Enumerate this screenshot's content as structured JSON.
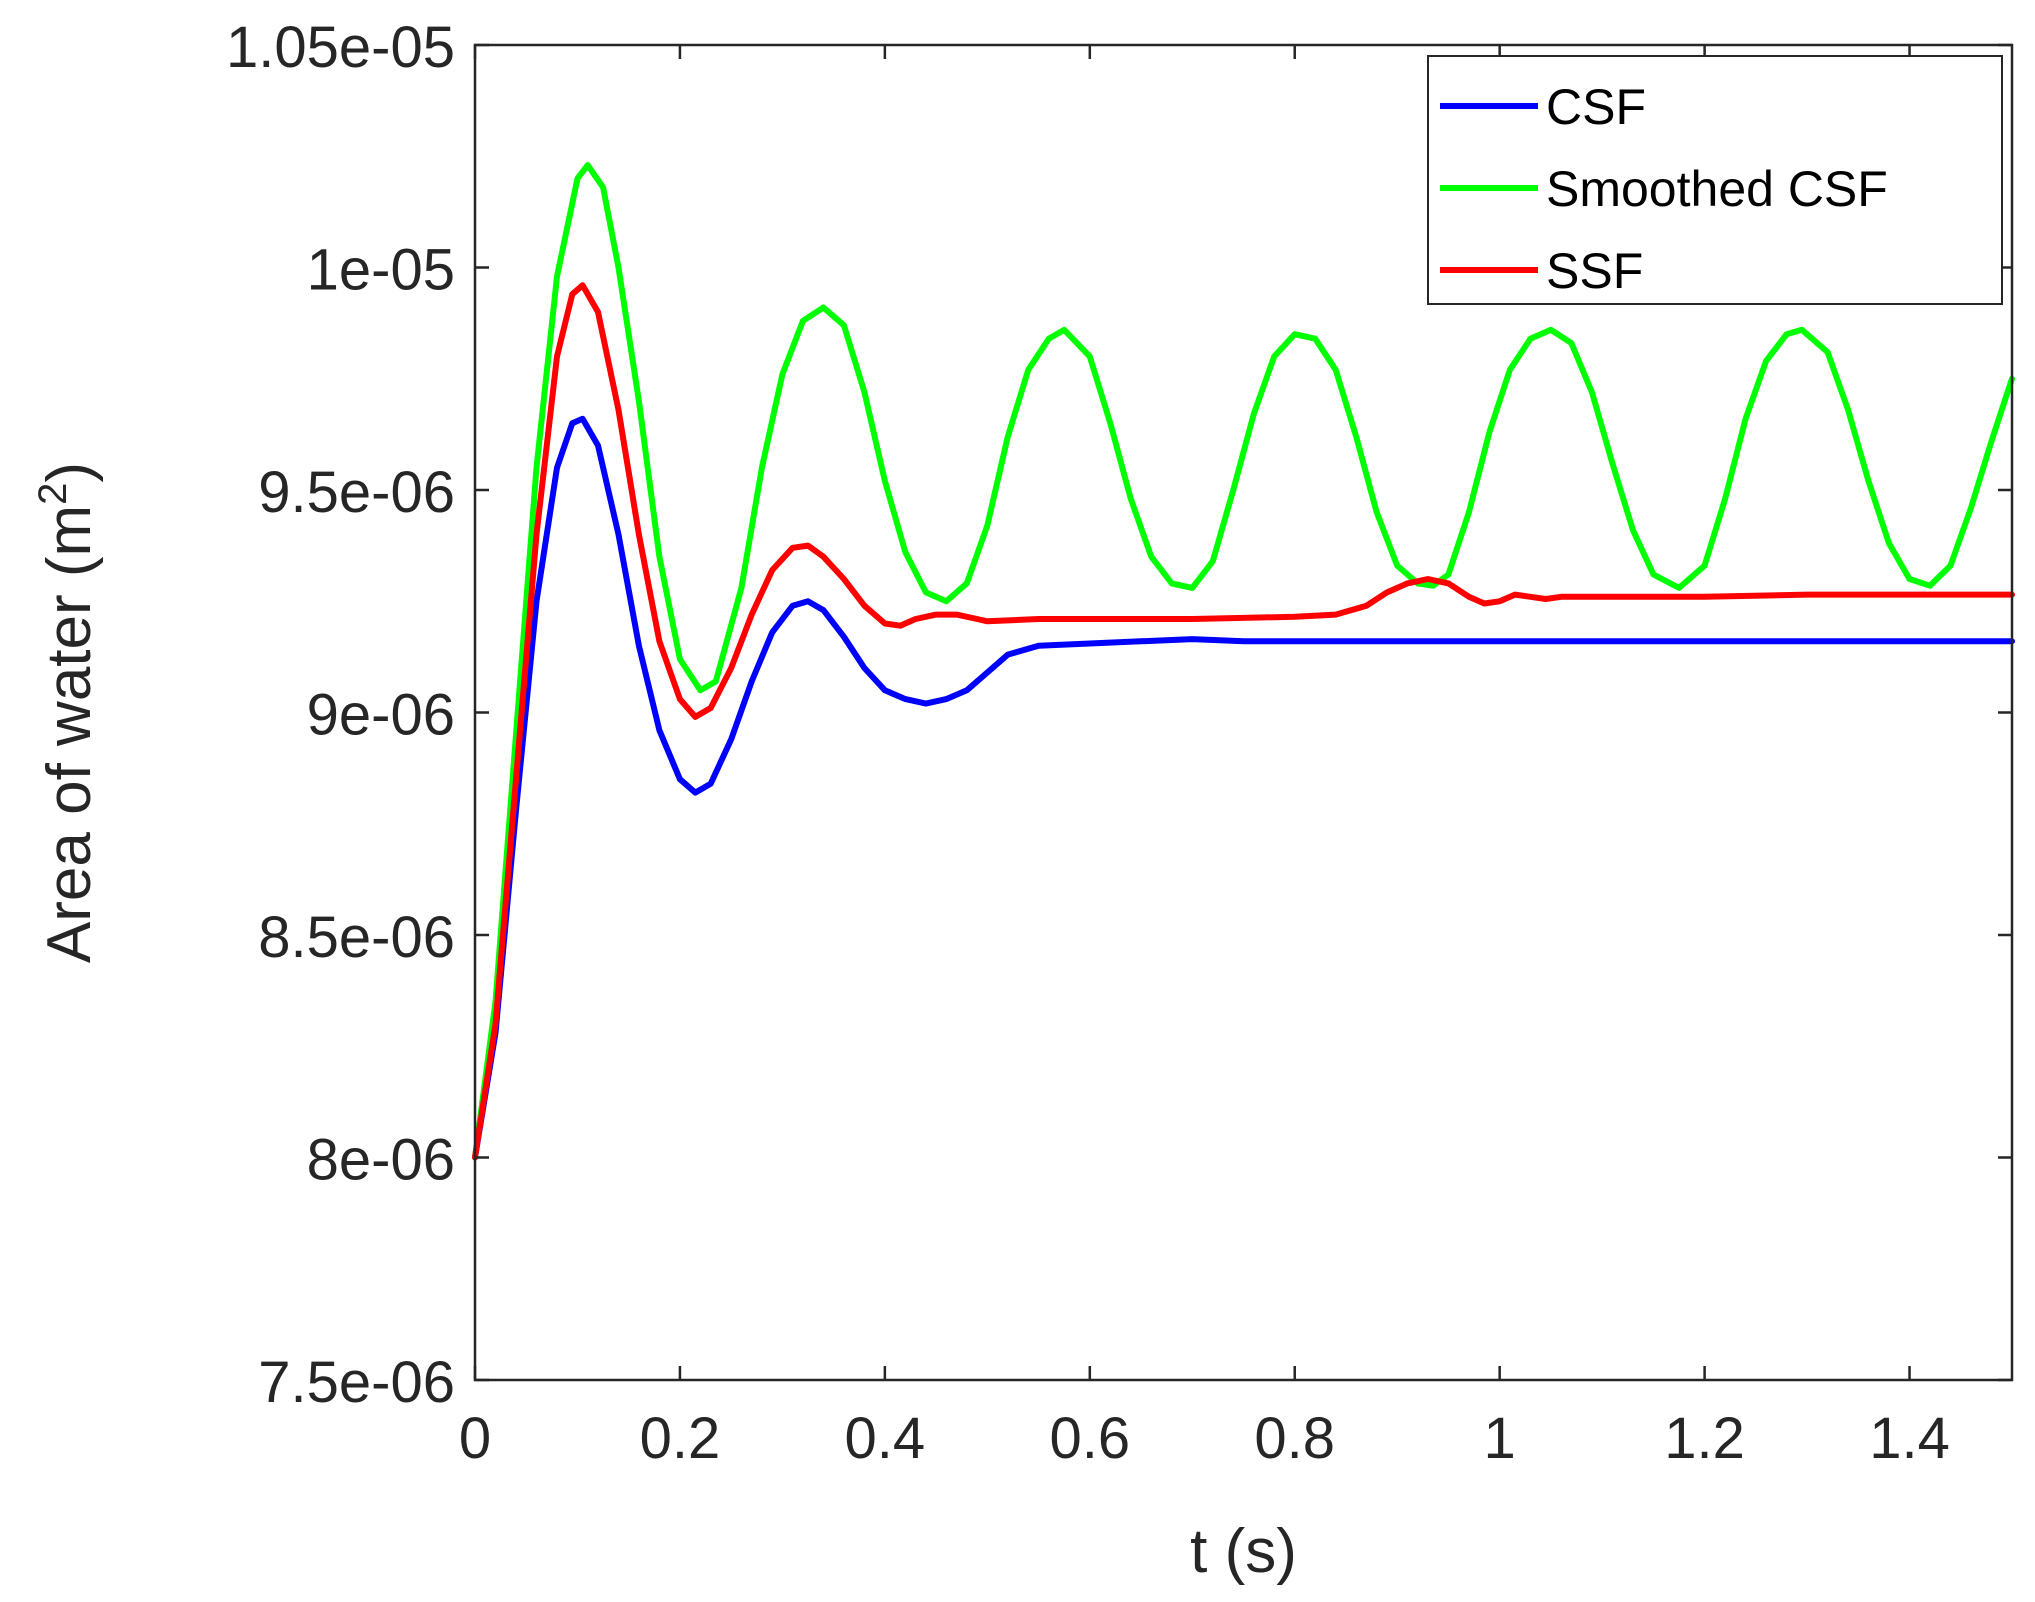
{
  "chart_data": {
    "type": "line",
    "xlabel": "t (s)",
    "ylabel": "Area of water (m",
    "ylabel_sup": "2",
    "ylabel_close": ")",
    "xlim": [
      0,
      1.5
    ],
    "ylim": [
      7.5e-06,
      1.05e-05
    ],
    "x_ticks": [
      {
        "value": 0,
        "label": "0"
      },
      {
        "value": 0.2,
        "label": "0.2"
      },
      {
        "value": 0.4,
        "label": "0.4"
      },
      {
        "value": 0.6,
        "label": "0.6"
      },
      {
        "value": 0.8,
        "label": "0.8"
      },
      {
        "value": 1.0,
        "label": "1"
      },
      {
        "value": 1.2,
        "label": "1.2"
      },
      {
        "value": 1.4,
        "label": "1.4"
      }
    ],
    "y_ticks": [
      {
        "value": 7.5e-06,
        "label": "7.5e-06"
      },
      {
        "value": 8e-06,
        "label": "8e-06"
      },
      {
        "value": 8.5e-06,
        "label": "8.5e-06"
      },
      {
        "value": 9e-06,
        "label": "9e-06"
      },
      {
        "value": 9.5e-06,
        "label": "9.5e-06"
      },
      {
        "value": 1e-05,
        "label": "1e-05"
      },
      {
        "value": 1.05e-05,
        "label": "1.05e-05"
      }
    ],
    "grid": false,
    "legend_position": "top-right",
    "series": [
      {
        "name": "CSF",
        "color": "#0000ff",
        "points": [
          [
            0,
            8e-06
          ],
          [
            0.02,
            8.28e-06
          ],
          [
            0.04,
            8.78e-06
          ],
          [
            0.06,
            9.25e-06
          ],
          [
            0.08,
            9.55e-06
          ],
          [
            0.095,
            9.65e-06
          ],
          [
            0.105,
            9.66e-06
          ],
          [
            0.12,
            9.6e-06
          ],
          [
            0.14,
            9.4e-06
          ],
          [
            0.16,
            9.15e-06
          ],
          [
            0.18,
            8.96e-06
          ],
          [
            0.2,
            8.85e-06
          ],
          [
            0.215,
            8.82e-06
          ],
          [
            0.23,
            8.84e-06
          ],
          [
            0.25,
            8.94e-06
          ],
          [
            0.27,
            9.07e-06
          ],
          [
            0.29,
            9.18e-06
          ],
          [
            0.31,
            9.24e-06
          ],
          [
            0.325,
            9.25e-06
          ],
          [
            0.34,
            9.23e-06
          ],
          [
            0.36,
            9.17e-06
          ],
          [
            0.38,
            9.1e-06
          ],
          [
            0.4,
            9.05e-06
          ],
          [
            0.42,
            9.03e-06
          ],
          [
            0.44,
            9.02e-06
          ],
          [
            0.46,
            9.03e-06
          ],
          [
            0.48,
            9.05e-06
          ],
          [
            0.5,
            9.09e-06
          ],
          [
            0.52,
            9.13e-06
          ],
          [
            0.55,
            9.15e-06
          ],
          [
            0.6,
            9.155e-06
          ],
          [
            0.65,
            9.16e-06
          ],
          [
            0.7,
            9.165e-06
          ],
          [
            0.75,
            9.16e-06
          ],
          [
            0.8,
            9.16e-06
          ],
          [
            0.9,
            9.16e-06
          ],
          [
            1.0,
            9.16e-06
          ],
          [
            1.1,
            9.16e-06
          ],
          [
            1.2,
            9.16e-06
          ],
          [
            1.3,
            9.16e-06
          ],
          [
            1.4,
            9.16e-06
          ],
          [
            1.5,
            9.16e-06
          ]
        ]
      },
      {
        "name": "Smoothed CSF",
        "color": "#00ff00",
        "points": [
          [
            0,
            8e-06
          ],
          [
            0.02,
            8.35e-06
          ],
          [
            0.04,
            8.95e-06
          ],
          [
            0.06,
            9.55e-06
          ],
          [
            0.08,
            9.98e-06
          ],
          [
            0.1,
            1.02e-05
          ],
          [
            0.11,
            1.023e-05
          ],
          [
            0.125,
            1.018e-05
          ],
          [
            0.14,
            1e-05
          ],
          [
            0.16,
            9.7e-06
          ],
          [
            0.18,
            9.35e-06
          ],
          [
            0.2,
            9.12e-06
          ],
          [
            0.22,
            9.05e-06
          ],
          [
            0.235,
            9.07e-06
          ],
          [
            0.26,
            9.28e-06
          ],
          [
            0.28,
            9.55e-06
          ],
          [
            0.3,
            9.76e-06
          ],
          [
            0.32,
            9.88e-06
          ],
          [
            0.34,
            9.91e-06
          ],
          [
            0.36,
            9.87e-06
          ],
          [
            0.38,
            9.72e-06
          ],
          [
            0.4,
            9.52e-06
          ],
          [
            0.42,
            9.36e-06
          ],
          [
            0.44,
            9.27e-06
          ],
          [
            0.46,
            9.25e-06
          ],
          [
            0.48,
            9.29e-06
          ],
          [
            0.5,
            9.42e-06
          ],
          [
            0.52,
            9.62e-06
          ],
          [
            0.54,
            9.77e-06
          ],
          [
            0.56,
            9.84e-06
          ],
          [
            0.575,
            9.86e-06
          ],
          [
            0.6,
            9.8e-06
          ],
          [
            0.62,
            9.65e-06
          ],
          [
            0.64,
            9.48e-06
          ],
          [
            0.66,
            9.35e-06
          ],
          [
            0.68,
            9.29e-06
          ],
          [
            0.7,
            9.28e-06
          ],
          [
            0.72,
            9.34e-06
          ],
          [
            0.74,
            9.5e-06
          ],
          [
            0.76,
            9.67e-06
          ],
          [
            0.78,
            9.8e-06
          ],
          [
            0.8,
            9.85e-06
          ],
          [
            0.82,
            9.84e-06
          ],
          [
            0.84,
            9.77e-06
          ],
          [
            0.86,
            9.62e-06
          ],
          [
            0.88,
            9.45e-06
          ],
          [
            0.9,
            9.33e-06
          ],
          [
            0.92,
            9.29e-06
          ],
          [
            0.935,
            9.285e-06
          ],
          [
            0.95,
            9.31e-06
          ],
          [
            0.97,
            9.45e-06
          ],
          [
            0.99,
            9.63e-06
          ],
          [
            1.01,
            9.77e-06
          ],
          [
            1.03,
            9.84e-06
          ],
          [
            1.05,
            9.86e-06
          ],
          [
            1.07,
            9.83e-06
          ],
          [
            1.09,
            9.72e-06
          ],
          [
            1.11,
            9.56e-06
          ],
          [
            1.13,
            9.41e-06
          ],
          [
            1.15,
            9.31e-06
          ],
          [
            1.175,
            9.28e-06
          ],
          [
            1.2,
            9.33e-06
          ],
          [
            1.22,
            9.48e-06
          ],
          [
            1.24,
            9.66e-06
          ],
          [
            1.26,
            9.79e-06
          ],
          [
            1.28,
            9.85e-06
          ],
          [
            1.295,
            9.86e-06
          ],
          [
            1.32,
            9.81e-06
          ],
          [
            1.34,
            9.68e-06
          ],
          [
            1.36,
            9.52e-06
          ],
          [
            1.38,
            9.38e-06
          ],
          [
            1.4,
            9.3e-06
          ],
          [
            1.42,
            9.285e-06
          ],
          [
            1.44,
            9.33e-06
          ],
          [
            1.46,
            9.46e-06
          ],
          [
            1.48,
            9.61e-06
          ],
          [
            1.5,
            9.75e-06
          ]
        ]
      },
      {
        "name": "SSF",
        "color": "#ff0000",
        "points": [
          [
            0,
            8e-06
          ],
          [
            0.02,
            8.3e-06
          ],
          [
            0.04,
            8.85e-06
          ],
          [
            0.06,
            9.4e-06
          ],
          [
            0.08,
            9.8e-06
          ],
          [
            0.095,
            9.94e-06
          ],
          [
            0.105,
            9.96e-06
          ],
          [
            0.12,
            9.9e-06
          ],
          [
            0.14,
            9.68e-06
          ],
          [
            0.16,
            9.4e-06
          ],
          [
            0.18,
            9.16e-06
          ],
          [
            0.2,
            9.03e-06
          ],
          [
            0.215,
            8.99e-06
          ],
          [
            0.23,
            9.01e-06
          ],
          [
            0.25,
            9.1e-06
          ],
          [
            0.27,
            9.22e-06
          ],
          [
            0.29,
            9.32e-06
          ],
          [
            0.31,
            9.37e-06
          ],
          [
            0.325,
            9.375e-06
          ],
          [
            0.34,
            9.35e-06
          ],
          [
            0.36,
            9.3e-06
          ],
          [
            0.38,
            9.24e-06
          ],
          [
            0.4,
            9.2e-06
          ],
          [
            0.415,
            9.195e-06
          ],
          [
            0.43,
            9.21e-06
          ],
          [
            0.45,
            9.22e-06
          ],
          [
            0.47,
            9.22e-06
          ],
          [
            0.49,
            9.21e-06
          ],
          [
            0.5,
            9.205e-06
          ],
          [
            0.55,
            9.21e-06
          ],
          [
            0.6,
            9.21e-06
          ],
          [
            0.7,
            9.21e-06
          ],
          [
            0.8,
            9.215e-06
          ],
          [
            0.84,
            9.22e-06
          ],
          [
            0.87,
            9.24e-06
          ],
          [
            0.89,
            9.27e-06
          ],
          [
            0.91,
            9.29e-06
          ],
          [
            0.93,
            9.3e-06
          ],
          [
            0.95,
            9.29e-06
          ],
          [
            0.97,
            9.26e-06
          ],
          [
            0.985,
            9.245e-06
          ],
          [
            1.0,
            9.25e-06
          ],
          [
            1.015,
            9.265e-06
          ],
          [
            1.03,
            9.26e-06
          ],
          [
            1.045,
            9.255e-06
          ],
          [
            1.06,
            9.26e-06
          ],
          [
            1.1,
            9.26e-06
          ],
          [
            1.2,
            9.26e-06
          ],
          [
            1.3,
            9.265e-06
          ],
          [
            1.4,
            9.265e-06
          ],
          [
            1.5,
            9.265e-06
          ]
        ]
      }
    ]
  }
}
